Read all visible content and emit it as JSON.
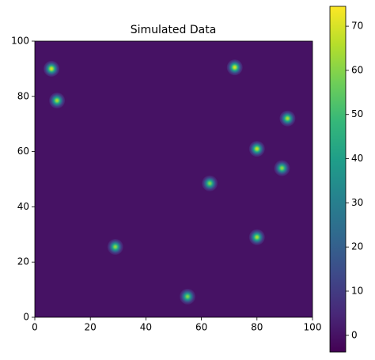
{
  "chart_data": {
    "type": "heatmap",
    "title": "Simulated Data",
    "colormap": "viridis",
    "background": 0,
    "x": [
      6,
      8,
      72,
      91,
      80,
      89,
      63,
      29,
      80,
      55
    ],
    "y": [
      90,
      78.5,
      90.5,
      72,
      61,
      54,
      48.5,
      25.5,
      29,
      7.5
    ],
    "values": [
      70,
      65,
      70,
      65,
      68,
      62,
      60,
      62,
      65,
      60
    ],
    "xlim": [
      0,
      100
    ],
    "ylim": [
      0,
      100
    ],
    "xticks": [
      0,
      20,
      40,
      60,
      80,
      100
    ],
    "yticks": [
      0,
      20,
      40,
      60,
      80,
      100
    ],
    "clim": [
      -3.8,
      74.5
    ],
    "cticks": [
      0,
      10,
      20,
      30,
      40,
      50,
      60,
      70
    ]
  }
}
